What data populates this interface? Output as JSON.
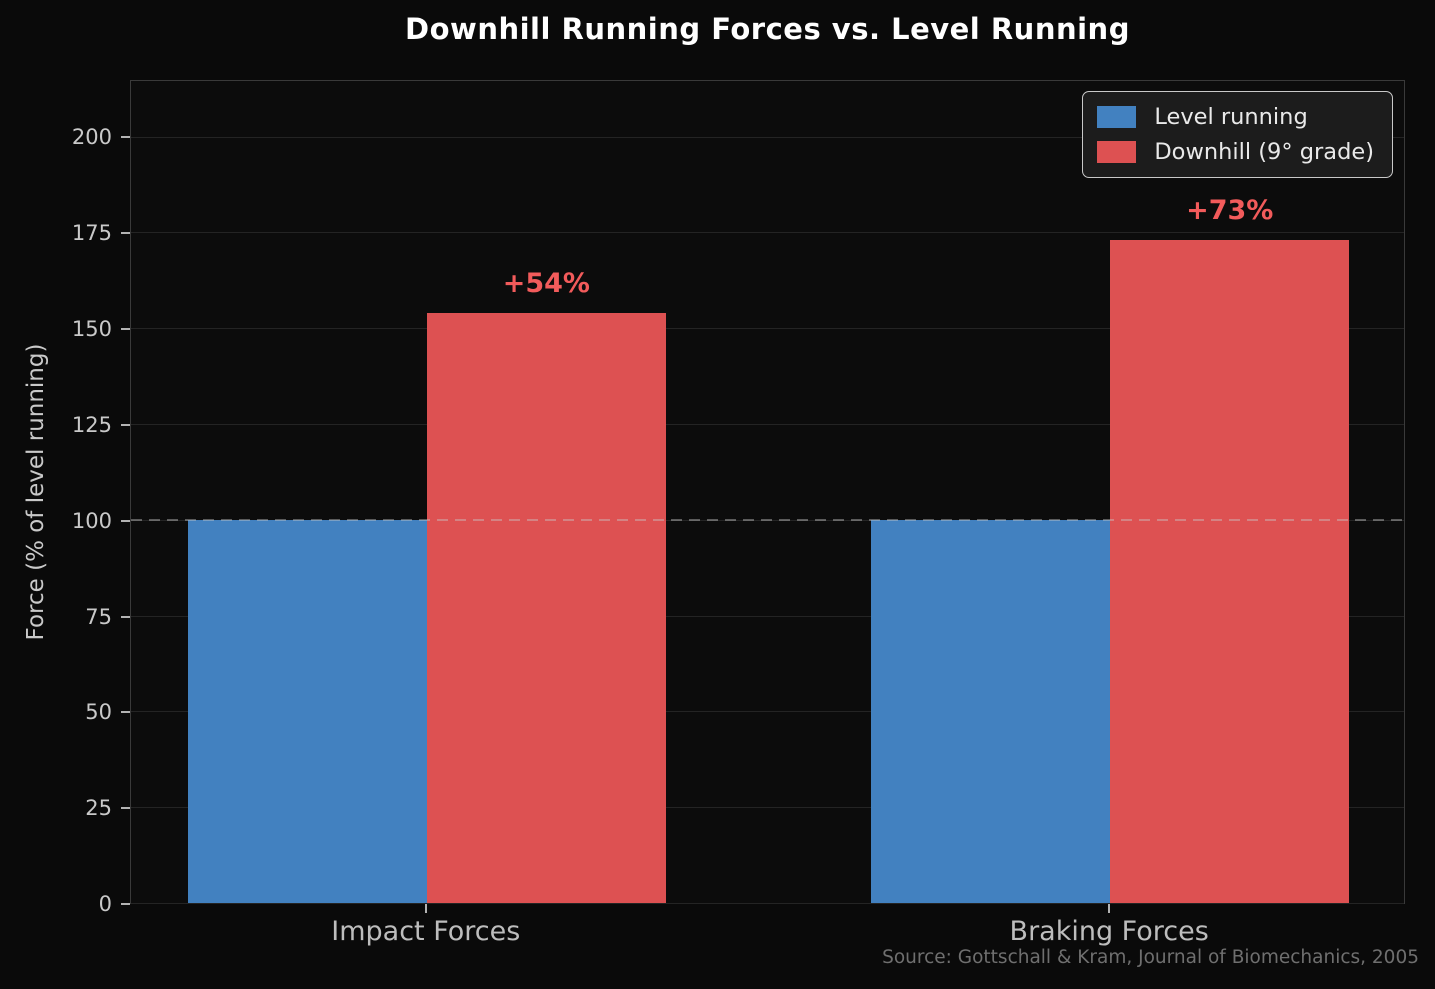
{
  "chart_data": {
    "type": "bar",
    "title": "Downhill Running Forces vs. Level Running",
    "xlabel": "",
    "ylabel": "Force (% of level running)",
    "categories": [
      "Impact Forces",
      "Braking Forces"
    ],
    "series": [
      {
        "name": "Level running",
        "values": [
          100,
          100
        ],
        "color": "#4281c0"
      },
      {
        "name": "Downhill (9° grade)",
        "values": [
          154,
          173
        ],
        "color": "#dd5152"
      }
    ],
    "annotations": [
      {
        "text": "+54%",
        "category_index": 0,
        "series_index": 1,
        "color": "#f25b5b"
      },
      {
        "text": "+73%",
        "category_index": 1,
        "series_index": 1,
        "color": "#f25b5b"
      }
    ],
    "yticks": [
      0,
      25,
      50,
      75,
      100,
      125,
      150,
      175,
      200
    ],
    "ylim": [
      0,
      215
    ],
    "reference_line": {
      "value": 100,
      "style": "dashed",
      "color": "#c8c8c8"
    },
    "grid": true,
    "legend_position": "upper right",
    "source": "Source: Gottschall & Kram, Journal of Biomechanics, 2005"
  },
  "colors": {
    "background": "#0a0a0a",
    "level_running_bar": "#4281c0",
    "downhill_bar": "#dd5152",
    "annotation_text": "#f25b5b",
    "title_text": "#ffffff",
    "tick_text": "#c9c9c9",
    "source_text": "#6f6f6f"
  }
}
